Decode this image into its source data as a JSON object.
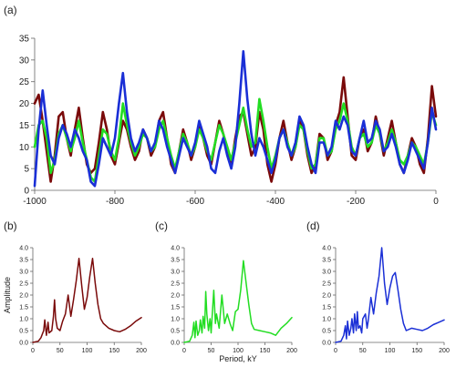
{
  "figure": {
    "panel_labels": [
      "(a)",
      "(b)",
      "(c)",
      "(d)"
    ],
    "colors": {
      "a": "#7a0a0a",
      "b": "#22dd22",
      "c": "#1a2fd6"
    }
  },
  "chart_data": [
    {
      "panel": "(a)",
      "type": "line",
      "xlabel": "",
      "ylabel": "",
      "xlim": [
        -1000,
        0
      ],
      "ylim": [
        0,
        35
      ],
      "xticks": [
        -1000,
        -800,
        -600,
        -400,
        -200,
        0
      ],
      "yticks": [
        0,
        5,
        10,
        15,
        20,
        25,
        30,
        35
      ],
      "series": [
        {
          "color": "#7a0a0a",
          "x": [
            -1000,
            -990,
            -980,
            -970,
            -960,
            -950,
            -940,
            -930,
            -920,
            -910,
            -900,
            -890,
            -880,
            -870,
            -860,
            -850,
            -840,
            -830,
            -820,
            -810,
            -800,
            -790,
            -780,
            -770,
            -760,
            -750,
            -740,
            -730,
            -720,
            -710,
            -700,
            -690,
            -680,
            -670,
            -660,
            -650,
            -640,
            -630,
            -620,
            -610,
            -600,
            -590,
            -580,
            -570,
            -560,
            -550,
            -540,
            -530,
            -520,
            -510,
            -500,
            -490,
            -480,
            -470,
            -460,
            -450,
            -440,
            -430,
            -420,
            -410,
            -400,
            -390,
            -380,
            -370,
            -360,
            -350,
            -340,
            -330,
            -320,
            -310,
            -300,
            -290,
            -280,
            -270,
            -260,
            -250,
            -240,
            -230,
            -220,
            -210,
            -200,
            -190,
            -180,
            -170,
            -160,
            -150,
            -140,
            -130,
            -120,
            -110,
            -100,
            -90,
            -80,
            -70,
            -60,
            -50,
            -40,
            -30,
            -20,
            -10,
            0
          ],
          "y": [
            20,
            22,
            16,
            9,
            2,
            8,
            17,
            18,
            12,
            8,
            14,
            19,
            12,
            6,
            4,
            5,
            11,
            18,
            14,
            8,
            6,
            11,
            16,
            14,
            10,
            7,
            9,
            14,
            12,
            8,
            10,
            16,
            18,
            12,
            6,
            4,
            9,
            14,
            11,
            7,
            10,
            15,
            12,
            8,
            6,
            11,
            16,
            13,
            9,
            6,
            12,
            17,
            18,
            13,
            8,
            10,
            18,
            14,
            6,
            2,
            6,
            12,
            16,
            11,
            7,
            10,
            16,
            14,
            8,
            4,
            6,
            13,
            12,
            7,
            9,
            15,
            18,
            26,
            17,
            8,
            7,
            12,
            14,
            9,
            11,
            17,
            13,
            8,
            12,
            16,
            11,
            6,
            4,
            8,
            12,
            10,
            6,
            4,
            12,
            24,
            17
          ]
        },
        {
          "color": "#22dd22",
          "x": [
            -1000,
            -990,
            -980,
            -970,
            -960,
            -950,
            -940,
            -930,
            -920,
            -910,
            -900,
            -890,
            -880,
            -870,
            -860,
            -850,
            -840,
            -830,
            -820,
            -810,
            -800,
            -790,
            -780,
            -770,
            -760,
            -750,
            -740,
            -730,
            -720,
            -710,
            -700,
            -690,
            -680,
            -670,
            -660,
            -650,
            -640,
            -630,
            -620,
            -610,
            -600,
            -590,
            -580,
            -570,
            -560,
            -550,
            -540,
            -530,
            -520,
            -510,
            -500,
            -490,
            -480,
            -470,
            -460,
            -450,
            -440,
            -430,
            -420,
            -410,
            -400,
            -390,
            -380,
            -370,
            -360,
            -350,
            -340,
            -330,
            -320,
            -310,
            -300,
            -290,
            -280,
            -270,
            -260,
            -250,
            -240,
            -230,
            -220,
            -210,
            -200,
            -190,
            -180,
            -170,
            -160,
            -150,
            -140,
            -130,
            -120,
            -110,
            -100,
            -90,
            -80,
            -70,
            -60,
            -50,
            -40,
            -30,
            -20,
            -10,
            0
          ],
          "y": [
            10,
            15,
            16,
            12,
            4,
            7,
            13,
            15,
            12,
            9,
            12,
            16,
            11,
            7,
            3,
            2,
            8,
            14,
            13,
            9,
            7,
            12,
            20,
            15,
            11,
            8,
            10,
            13,
            12,
            9,
            10,
            14,
            16,
            12,
            8,
            5,
            9,
            13,
            11,
            8,
            10,
            14,
            12,
            9,
            7,
            11,
            15,
            13,
            10,
            7,
            11,
            15,
            19,
            14,
            10,
            11,
            21,
            16,
            10,
            5,
            8,
            12,
            14,
            11,
            8,
            10,
            15,
            14,
            9,
            5,
            6,
            12,
            12,
            8,
            9,
            14,
            16,
            20,
            16,
            10,
            8,
            12,
            13,
            10,
            11,
            15,
            13,
            9,
            11,
            14,
            11,
            7,
            6,
            8,
            11,
            10,
            8,
            6,
            11,
            18,
            15
          ]
        },
        {
          "color": "#1a2fd6",
          "x": [
            -1000,
            -990,
            -980,
            -970,
            -960,
            -950,
            -940,
            -930,
            -920,
            -910,
            -900,
            -890,
            -880,
            -870,
            -860,
            -850,
            -840,
            -830,
            -820,
            -810,
            -800,
            -790,
            -780,
            -770,
            -760,
            -750,
            -740,
            -730,
            -720,
            -710,
            -700,
            -690,
            -680,
            -670,
            -660,
            -650,
            -640,
            -630,
            -620,
            -610,
            -600,
            -590,
            -580,
            -570,
            -560,
            -550,
            -540,
            -530,
            -520,
            -510,
            -500,
            -490,
            -480,
            -470,
            -460,
            -450,
            -440,
            -430,
            -420,
            -410,
            -400,
            -390,
            -380,
            -370,
            -360,
            -350,
            -340,
            -330,
            -320,
            -310,
            -300,
            -290,
            -280,
            -270,
            -260,
            -250,
            -240,
            -230,
            -220,
            -210,
            -200,
            -190,
            -180,
            -170,
            -160,
            -150,
            -140,
            -130,
            -120,
            -110,
            -100,
            -90,
            -80,
            -70,
            -60,
            -50,
            -40,
            -30,
            -20,
            -10,
            0
          ],
          "y": [
            1,
            14,
            23,
            15,
            8,
            6,
            12,
            15,
            13,
            10,
            14,
            12,
            9,
            7,
            2,
            1,
            6,
            12,
            10,
            8,
            12,
            20,
            27,
            18,
            12,
            9,
            11,
            14,
            12,
            9,
            11,
            16,
            14,
            10,
            7,
            4,
            8,
            12,
            10,
            8,
            11,
            16,
            13,
            10,
            5,
            4,
            9,
            12,
            8,
            5,
            10,
            20,
            32,
            21,
            13,
            8,
            12,
            10,
            7,
            4,
            7,
            12,
            14,
            10,
            8,
            11,
            17,
            15,
            10,
            6,
            4,
            11,
            11,
            8,
            10,
            16,
            14,
            17,
            15,
            9,
            8,
            12,
            16,
            11,
            12,
            16,
            14,
            9,
            10,
            13,
            10,
            6,
            4,
            7,
            11,
            9,
            7,
            5,
            11,
            19,
            14
          ]
        }
      ]
    },
    {
      "panel": "(b)",
      "type": "line",
      "ylabel": "Amplitude",
      "xlim": [
        0,
        200
      ],
      "ylim": [
        0,
        4
      ],
      "xticks": [
        0,
        50,
        100,
        150,
        200
      ],
      "yticks": [
        "0.0",
        "0.5",
        "1.0",
        "1.5",
        "2.0",
        "2.5",
        "3.0",
        "3.5",
        "4.0"
      ],
      "series": [
        {
          "color": "#7a0a0a",
          "x": [
            0,
            10,
            15,
            20,
            22,
            25,
            28,
            30,
            35,
            38,
            40,
            42,
            45,
            50,
            55,
            60,
            65,
            70,
            75,
            80,
            85,
            90,
            95,
            100,
            105,
            110,
            115,
            120,
            125,
            130,
            140,
            150,
            160,
            170,
            180,
            190,
            200
          ],
          "y": [
            0,
            0.05,
            0.2,
            0.5,
            0.95,
            0.3,
            0.85,
            0.4,
            0.5,
            1.1,
            1.8,
            1.0,
            0.6,
            0.5,
            0.9,
            1.2,
            2.0,
            1.1,
            1.8,
            2.6,
            3.55,
            2.4,
            1.4,
            1.9,
            2.8,
            3.55,
            2.5,
            1.6,
            1.0,
            0.8,
            0.6,
            0.5,
            0.45,
            0.55,
            0.7,
            0.9,
            1.05
          ]
        }
      ]
    },
    {
      "panel": "(c)",
      "type": "line",
      "xlabel": "Period, kY",
      "xlim": [
        0,
        200
      ],
      "ylim": [
        0,
        4
      ],
      "xticks": [
        0,
        50,
        100,
        150,
        200
      ],
      "yticks": [
        "0.0",
        "0.5",
        "1.0",
        "1.5",
        "2.0",
        "2.5",
        "3.0",
        "3.5",
        "4.0"
      ],
      "series": [
        {
          "color": "#22dd22",
          "x": [
            0,
            10,
            15,
            18,
            20,
            22,
            25,
            28,
            30,
            33,
            35,
            38,
            40,
            42,
            45,
            48,
            50,
            55,
            58,
            60,
            65,
            70,
            75,
            80,
            85,
            90,
            95,
            100,
            105,
            110,
            115,
            120,
            125,
            130,
            140,
            150,
            160,
            170,
            180,
            190,
            200
          ],
          "y": [
            0,
            0.05,
            0.3,
            0.85,
            0.2,
            0.9,
            0.3,
            0.5,
            0.95,
            0.4,
            1.1,
            0.6,
            2.15,
            1.2,
            0.5,
            1.0,
            0.4,
            2.2,
            0.8,
            1.2,
            0.6,
            2.0,
            0.8,
            1.2,
            0.8,
            0.5,
            1.3,
            1.4,
            2.2,
            3.45,
            2.5,
            1.6,
            0.8,
            0.55,
            0.5,
            0.45,
            0.4,
            0.3,
            0.6,
            0.8,
            1.05
          ]
        }
      ]
    },
    {
      "panel": "(d)",
      "type": "line",
      "xlim": [
        0,
        200
      ],
      "ylim": [
        0,
        4
      ],
      "xticks": [
        0,
        50,
        100,
        150,
        200
      ],
      "yticks": [
        "0.0",
        "0.5",
        "1.0",
        "1.5",
        "2.0",
        "2.5",
        "3.0",
        "3.5",
        "4.0"
      ],
      "series": [
        {
          "color": "#1a2fd6",
          "x": [
            0,
            10,
            15,
            18,
            20,
            22,
            25,
            28,
            30,
            33,
            35,
            38,
            40,
            42,
            45,
            48,
            50,
            55,
            58,
            60,
            65,
            70,
            75,
            80,
            85,
            90,
            95,
            100,
            105,
            110,
            115,
            120,
            125,
            130,
            140,
            150,
            160,
            170,
            180,
            190,
            200
          ],
          "y": [
            0,
            0.05,
            0.3,
            0.7,
            0.15,
            0.9,
            0.3,
            0.6,
            1.0,
            0.4,
            1.2,
            0.5,
            1.3,
            0.6,
            0.7,
            0.4,
            1.0,
            1.2,
            0.6,
            0.9,
            1.9,
            1.2,
            2.1,
            2.8,
            4.0,
            2.5,
            1.6,
            2.3,
            2.8,
            2.95,
            2.2,
            1.4,
            0.8,
            0.5,
            0.6,
            0.55,
            0.5,
            0.6,
            0.75,
            0.85,
            0.95
          ]
        }
      ]
    }
  ]
}
